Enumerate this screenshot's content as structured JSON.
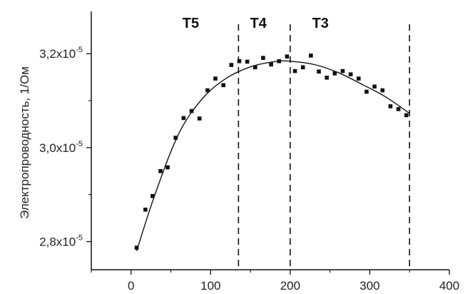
{
  "chart_data": {
    "type": "scatter",
    "title": "",
    "xlabel": "",
    "ylabel": "Электропроводность, 1/Ом",
    "xlim": [
      -50,
      400
    ],
    "ylim": [
      2.74e-05,
      3.29e-05
    ],
    "grid": false,
    "x_ticks": [
      {
        "value": 0,
        "label": "0"
      },
      {
        "value": 100,
        "label": "100"
      },
      {
        "value": 200,
        "label": "200"
      },
      {
        "value": 300,
        "label": "300"
      },
      {
        "value": 400,
        "label": "400"
      }
    ],
    "y_ticks": [
      {
        "value": 2.8e-05,
        "mantissa": "2,8x10",
        "exp": "-5"
      },
      {
        "value": 3e-05,
        "mantissa": "3,0x10",
        "exp": "-5"
      },
      {
        "value": 3.2e-05,
        "mantissa": "3,2x10",
        "exp": "-5"
      }
    ],
    "series": [
      {
        "x": [
          7,
          18,
          27,
          37,
          46,
          56,
          66,
          76,
          86,
          96,
          106,
          116,
          126,
          136,
          146,
          156,
          166,
          176,
          186,
          196,
          206,
          216,
          226,
          236,
          246,
          256,
          266,
          276,
          286,
          296,
          306,
          316,
          326,
          336,
          346
        ],
        "y": [
          2.787e-05,
          2.868e-05,
          2.897e-05,
          2.95e-05,
          2.958e-05,
          3.021e-05,
          3.063e-05,
          3.078e-05,
          3.062e-05,
          3.122e-05,
          3.147e-05,
          3.133e-05,
          3.176e-05,
          3.184e-05,
          3.183e-05,
          3.171e-05,
          3.191e-05,
          3.177e-05,
          3.184e-05,
          3.194e-05,
          3.163e-05,
          3.171e-05,
          3.196e-05,
          3.162e-05,
          3.149e-05,
          3.158e-05,
          3.163e-05,
          3.156e-05,
          3.147e-05,
          3.119e-05,
          3.13e-05,
          3.122e-05,
          3.088e-05,
          3.082e-05,
          3.069e-05
        ]
      }
    ],
    "fit_curve": {
      "x": [
        7,
        30,
        60,
        90,
        120,
        150,
        180,
        200,
        230,
        260,
        290,
        320,
        350
      ],
      "y": [
        2.78e-05,
        2.9e-05,
        3.03e-05,
        3.105e-05,
        3.148e-05,
        3.172e-05,
        3.183e-05,
        3.184e-05,
        3.177e-05,
        3.16e-05,
        3.135e-05,
        3.108e-05,
        3.073e-05
      ]
    },
    "boundaries": [
      135,
      200,
      350
    ],
    "regions": [
      {
        "label": "T5",
        "x": 75
      },
      {
        "label": "T4",
        "x": 160
      },
      {
        "label": "T3",
        "x": 238
      }
    ],
    "region_label_y": 3.255e-05
  }
}
